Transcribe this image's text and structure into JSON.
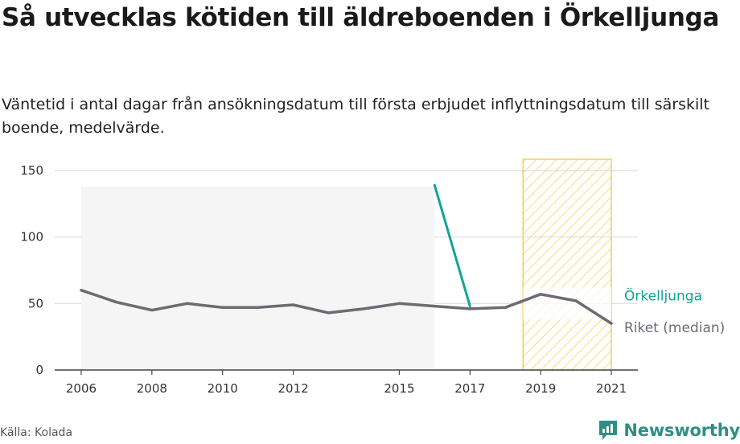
{
  "header": {
    "title": "Så utvecklas kötiden till äldreboenden i Örkelljunga",
    "subtitle": "Väntetid i antal dagar från ansökningsdatum till första erbjudet inflyttningsdatum till särskilt boende, medelvärde."
  },
  "footer": {
    "source": "Källa: Kolada",
    "brand": "Newsworthy",
    "brand_icon": "newsworthy-logo-icon"
  },
  "colors": {
    "orkelljunga": "#12a495",
    "riket": "#6e6a72",
    "highlight": "#f5c744",
    "band": "#f5f5f6",
    "grid": "#dddddd"
  },
  "chart_data": {
    "type": "line",
    "x": [
      2006,
      2007,
      2008,
      2009,
      2010,
      2011,
      2012,
      2013,
      2014,
      2015,
      2016,
      2017,
      2018,
      2019,
      2020,
      2021
    ],
    "series": [
      {
        "name": "Örkelljunga",
        "x": [
          2016,
          2017
        ],
        "values": [
          139,
          48
        ]
      },
      {
        "name": "Riket (median)",
        "x": [
          2006,
          2007,
          2008,
          2009,
          2010,
          2011,
          2012,
          2013,
          2014,
          2015,
          2016,
          2017,
          2018,
          2019,
          2020,
          2021
        ],
        "values": [
          60,
          51,
          45,
          50,
          47,
          47,
          49,
          43,
          46,
          50,
          48,
          46,
          47,
          57,
          52,
          35
        ]
      }
    ],
    "x_ticks": [
      "2006",
      "2008",
      "2010",
      "2012",
      "2015",
      "2017",
      "2019",
      "2021"
    ],
    "y_ticks": [
      "0",
      "50",
      "100",
      "150"
    ],
    "ylim": [
      0,
      150
    ],
    "xlim": [
      2005.25,
      2021.75
    ],
    "range_band": {
      "x": [
        2006,
        2016
      ],
      "y": [
        0,
        138
      ]
    },
    "highlight_period": [
      2018.5,
      2021
    ],
    "grid": true
  }
}
